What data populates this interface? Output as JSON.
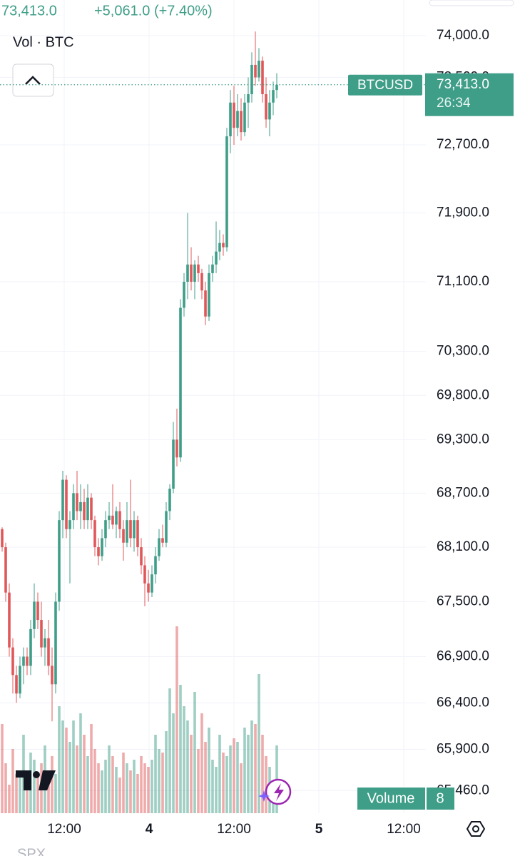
{
  "header": {
    "last": "73,413.0",
    "change": "+5,061.0 (+7.40%)"
  },
  "chart_data": {
    "type": "candlestick",
    "log": true,
    "grid": true,
    "volume_label": "Vol · BTC",
    "symbol": "BTCUSD",
    "last_price": {
      "value": 73413,
      "label": "73,413.0"
    },
    "countdown": "26:34",
    "volume_badge": {
      "label": "Volume",
      "value": 8
    },
    "up_color": "#3f9e88",
    "down_color": "#e0575a",
    "ylim": [
      65220,
      74430
    ],
    "yticks": [
      {
        "value": 74000,
        "label": "74,000.0"
      },
      {
        "value": 73500,
        "label": "73,500.0"
      },
      {
        "value": 72700,
        "label": "72,700.0"
      },
      {
        "value": 71900,
        "label": "71,900.0"
      },
      {
        "value": 71100,
        "label": "71,100.0"
      },
      {
        "value": 70300,
        "label": "70,300.0"
      },
      {
        "value": 69800,
        "label": "69,800.0"
      },
      {
        "value": 69300,
        "label": "69,300.0"
      },
      {
        "value": 68700,
        "label": "68,700.0"
      },
      {
        "value": 68100,
        "label": "68,100.0"
      },
      {
        "value": 67500,
        "label": "67,500.0"
      },
      {
        "value": 66900,
        "label": "66,900.0"
      },
      {
        "value": 66400,
        "label": "66,400.0"
      },
      {
        "value": 65900,
        "label": "65,900.0"
      },
      {
        "value": 65460,
        "label": "65,460.0"
      }
    ],
    "x_axis_labels": [
      "12:00",
      "4",
      "12:00",
      "5",
      "12:00"
    ],
    "bottom_label": "SPX",
    "open": [
      68300,
      68100,
      67600,
      67000,
      66700,
      66500,
      66800,
      66900,
      66800,
      67200,
      67500,
      67300,
      67000,
      67100,
      66800,
      66600,
      67500,
      68400,
      68850,
      68300,
      68400,
      68700,
      68500,
      68600,
      68400,
      68650,
      68400,
      68100,
      68000,
      68200,
      68400,
      68450,
      68350,
      68500,
      68300,
      68150,
      68400,
      68200,
      68400,
      68100,
      67900,
      67700,
      67600,
      67800,
      68000,
      68200,
      68150,
      68500,
      68750,
      69300,
      69100,
      70800,
      71100,
      71300,
      71100,
      71300,
      71200,
      71000,
      70700,
      71200,
      71300,
      71450,
      71550,
      71500,
      72800,
      73200,
      72900,
      73100,
      72850,
      73200,
      73300,
      73650,
      73500,
      73700,
      73300,
      73000,
      73200,
      73350
    ],
    "high": [
      68320,
      68150,
      67700,
      67100,
      66800,
      66900,
      67000,
      67000,
      67300,
      67700,
      67600,
      67500,
      67200,
      67300,
      67000,
      67600,
      68500,
      68950,
      68900,
      68500,
      68800,
      68950,
      68800,
      68750,
      68800,
      68700,
      68450,
      68200,
      68300,
      68500,
      68600,
      68800,
      68550,
      68600,
      68400,
      68600,
      68850,
      68500,
      68450,
      68200,
      68000,
      67850,
      67900,
      68100,
      68300,
      68350,
      68600,
      68800,
      69500,
      69650,
      70900,
      71200,
      71900,
      71500,
      71350,
      71400,
      71250,
      71100,
      71300,
      71400,
      71800,
      71700,
      71650,
      72900,
      73350,
      73400,
      73300,
      73250,
      73300,
      73500,
      73800,
      74050,
      73850,
      73750,
      73500,
      73350,
      73450,
      73550
    ],
    "low": [
      68050,
      67500,
      66900,
      66500,
      66400,
      66450,
      66600,
      66700,
      66700,
      67100,
      67200,
      66900,
      66800,
      66700,
      66200,
      66500,
      67400,
      68200,
      68200,
      67700,
      68300,
      68400,
      68300,
      68300,
      68300,
      68300,
      68000,
      67900,
      67950,
      68100,
      68300,
      68300,
      68200,
      68200,
      67950,
      68100,
      68100,
      68050,
      68000,
      67800,
      67450,
      67500,
      67550,
      67700,
      67950,
      68100,
      68100,
      68400,
      68700,
      69000,
      69050,
      70700,
      70900,
      71000,
      70900,
      71100,
      70900,
      70600,
      70650,
      71100,
      71200,
      71350,
      71400,
      71450,
      72600,
      72700,
      72800,
      72750,
      72800,
      72900,
      73200,
      73400,
      73450,
      73200,
      72900,
      72800,
      73050,
      73250
    ],
    "close": [
      68100,
      67600,
      67000,
      66700,
      66500,
      66800,
      66900,
      66800,
      67200,
      67500,
      67300,
      67000,
      67100,
      66800,
      66600,
      67500,
      68400,
      68850,
      68300,
      68400,
      68700,
      68500,
      68600,
      68400,
      68650,
      68400,
      68100,
      68000,
      68200,
      68400,
      68450,
      68350,
      68500,
      68300,
      68150,
      68400,
      68200,
      68400,
      68100,
      67900,
      67700,
      67600,
      67800,
      68000,
      68200,
      68150,
      68500,
      68750,
      69300,
      69100,
      70800,
      71100,
      71300,
      71100,
      71300,
      71200,
      71000,
      70700,
      71200,
      71300,
      71450,
      71550,
      71500,
      72800,
      73200,
      72900,
      73100,
      72850,
      73200,
      73300,
      73650,
      73500,
      73700,
      73300,
      73000,
      73200,
      73350,
      73413
    ],
    "volume": [
      125,
      70,
      40,
      90,
      55,
      60,
      110,
      45,
      85,
      75,
      50,
      70,
      95,
      40,
      80,
      55,
      150,
      130,
      120,
      100,
      130,
      95,
      140,
      110,
      80,
      125,
      90,
      70,
      60,
      75,
      95,
      80,
      65,
      50,
      85,
      70,
      60,
      75,
      55,
      80,
      70,
      65,
      75,
      110,
      90,
      85,
      115,
      175,
      140,
      262,
      180,
      150,
      130,
      110,
      170,
      90,
      140,
      100,
      120,
      75,
      65,
      110,
      85,
      80,
      95,
      105,
      100,
      70,
      120,
      110,
      130,
      125,
      195,
      110,
      80,
      65,
      40,
      95
    ]
  }
}
